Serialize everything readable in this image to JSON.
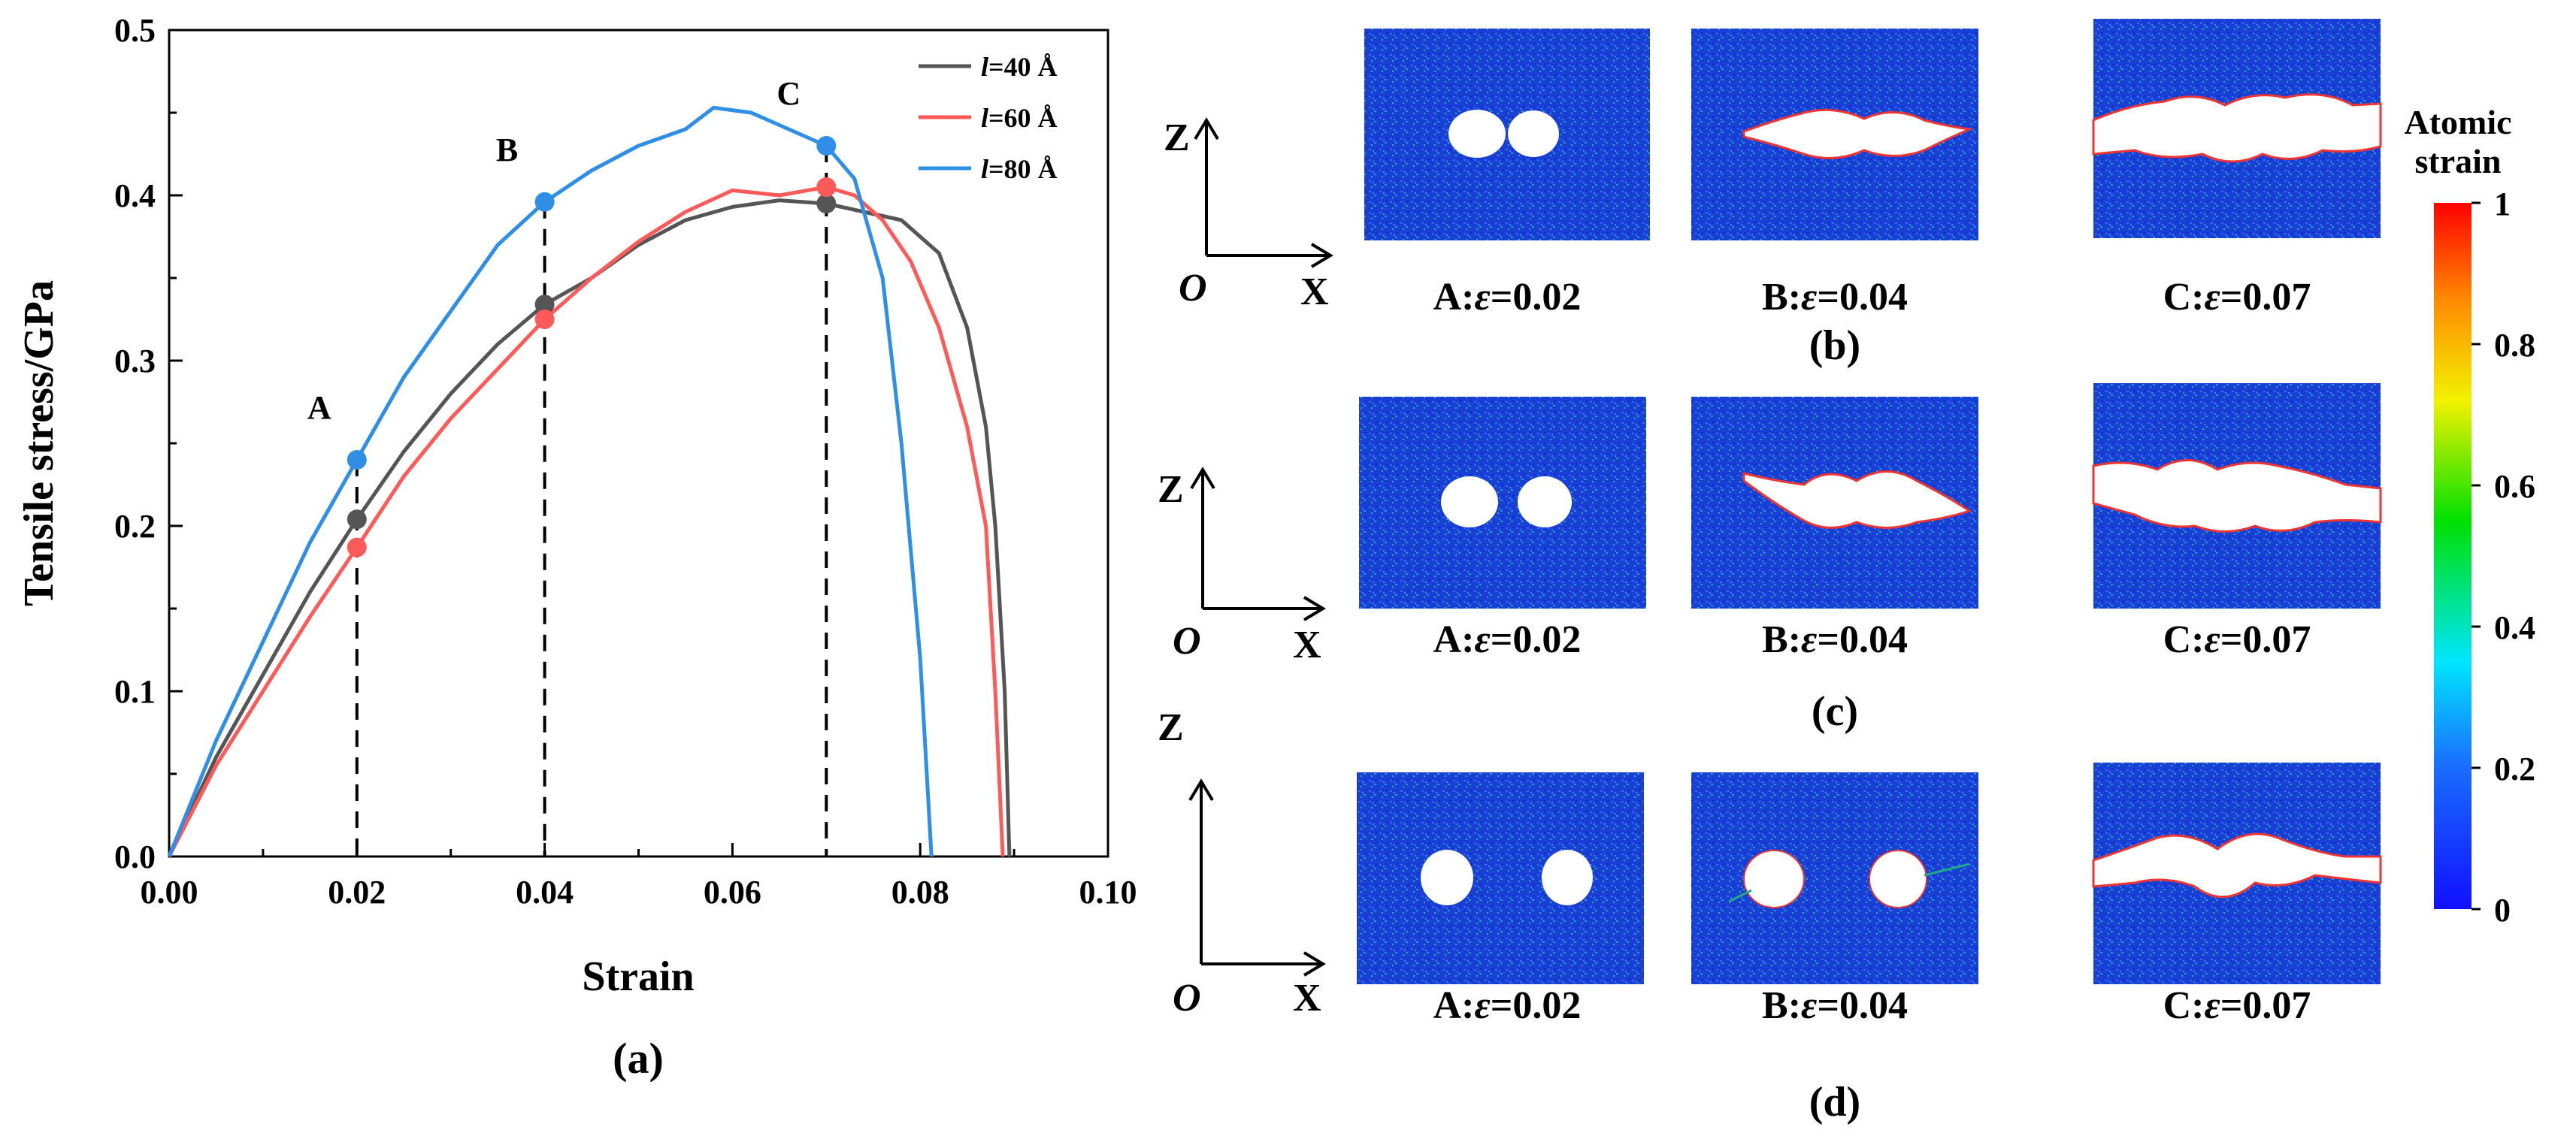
{
  "chart_data": {
    "type": "line",
    "xlabel": "Strain",
    "ylabel": "Tensile stress/GPa",
    "xlim": [
      0.0,
      0.1
    ],
    "ylim": [
      0.0,
      0.5
    ],
    "xticks": [
      "0.00",
      "0.02",
      "0.04",
      "0.06",
      "0.08",
      "0.10"
    ],
    "yticks": [
      "0.0",
      "0.1",
      "0.2",
      "0.3",
      "0.4",
      "0.5"
    ],
    "legend_position": "top-right",
    "series": [
      {
        "name_prefix": "l",
        "name_suffix": "=40 Å",
        "color": "#555555",
        "points": [
          [
            0,
            0
          ],
          [
            0.005,
            0.06
          ],
          [
            0.01,
            0.11
          ],
          [
            0.015,
            0.16
          ],
          [
            0.02,
            0.204
          ],
          [
            0.025,
            0.245
          ],
          [
            0.03,
            0.28
          ],
          [
            0.035,
            0.31
          ],
          [
            0.04,
            0.334
          ],
          [
            0.045,
            0.35
          ],
          [
            0.05,
            0.37
          ],
          [
            0.055,
            0.385
          ],
          [
            0.06,
            0.393
          ],
          [
            0.065,
            0.397
          ],
          [
            0.07,
            0.395
          ],
          [
            0.074,
            0.39
          ],
          [
            0.078,
            0.385
          ],
          [
            0.082,
            0.365
          ],
          [
            0.085,
            0.32
          ],
          [
            0.087,
            0.26
          ],
          [
            0.088,
            0.2
          ],
          [
            0.089,
            0.1
          ],
          [
            0.0895,
            0
          ]
        ]
      },
      {
        "name_prefix": "l",
        "name_suffix": "=60 Å",
        "color": "#ff5a5a",
        "points": [
          [
            0,
            0
          ],
          [
            0.005,
            0.055
          ],
          [
            0.01,
            0.1
          ],
          [
            0.015,
            0.145
          ],
          [
            0.02,
            0.187
          ],
          [
            0.025,
            0.23
          ],
          [
            0.03,
            0.265
          ],
          [
            0.035,
            0.295
          ],
          [
            0.04,
            0.325
          ],
          [
            0.045,
            0.35
          ],
          [
            0.05,
            0.372
          ],
          [
            0.055,
            0.39
          ],
          [
            0.06,
            0.403
          ],
          [
            0.065,
            0.4
          ],
          [
            0.07,
            0.405
          ],
          [
            0.073,
            0.4
          ],
          [
            0.076,
            0.385
          ],
          [
            0.079,
            0.36
          ],
          [
            0.082,
            0.32
          ],
          [
            0.085,
            0.26
          ],
          [
            0.087,
            0.2
          ],
          [
            0.088,
            0.1
          ],
          [
            0.0888,
            0
          ]
        ]
      },
      {
        "name_prefix": "l",
        "name_suffix": "=80 Å",
        "color": "#2f8fe6",
        "points": [
          [
            0,
            0
          ],
          [
            0.005,
            0.07
          ],
          [
            0.01,
            0.13
          ],
          [
            0.015,
            0.19
          ],
          [
            0.02,
            0.24
          ],
          [
            0.025,
            0.29
          ],
          [
            0.03,
            0.33
          ],
          [
            0.035,
            0.37
          ],
          [
            0.04,
            0.396
          ],
          [
            0.045,
            0.415
          ],
          [
            0.05,
            0.43
          ],
          [
            0.055,
            0.44
          ],
          [
            0.058,
            0.453
          ],
          [
            0.062,
            0.45
          ],
          [
            0.066,
            0.44
          ],
          [
            0.07,
            0.43
          ],
          [
            0.073,
            0.41
          ],
          [
            0.076,
            0.35
          ],
          [
            0.078,
            0.25
          ],
          [
            0.08,
            0.12
          ],
          [
            0.0812,
            0
          ]
        ]
      }
    ],
    "markers": [
      {
        "label": "A",
        "x": 0.02,
        "values": {
          "blue": 0.24,
          "gray": 0.204,
          "red": 0.187
        }
      },
      {
        "label": "B",
        "x": 0.04,
        "values": {
          "blue": 0.396,
          "gray": 0.334,
          "red": 0.325
        }
      },
      {
        "label": "C",
        "x": 0.07,
        "values": {
          "blue": 0.43,
          "gray": 0.395,
          "red": 0.405
        }
      }
    ]
  },
  "panel_a": {
    "caption": "(a)"
  },
  "axes_labels": {
    "z": "Z",
    "x": "X",
    "o": "O"
  },
  "snapshots": {
    "rows": [
      {
        "caption": "(b)",
        "items": [
          {
            "prefix": "A:",
            "eps": "ε",
            "value": "=0.02"
          },
          {
            "prefix": "B:",
            "eps": "ε",
            "value": "=0.04"
          },
          {
            "prefix": "C:",
            "eps": "ε",
            "value": "=0.07"
          }
        ]
      },
      {
        "caption": "(c)",
        "items": [
          {
            "prefix": "A:",
            "eps": "ε",
            "value": "=0.02"
          },
          {
            "prefix": "B:",
            "eps": "ε",
            "value": "=0.04"
          },
          {
            "prefix": "C:",
            "eps": "ε",
            "value": "=0.07"
          }
        ]
      },
      {
        "caption": "(d)",
        "items": [
          {
            "prefix": "A:",
            "eps": "ε",
            "value": "=0.02"
          },
          {
            "prefix": "B:",
            "eps": "ε",
            "value": "=0.04"
          },
          {
            "prefix": "C:",
            "eps": "ε",
            "value": "=0.07"
          }
        ]
      }
    ]
  },
  "colorbar": {
    "title_line1": "Atomic",
    "title_line2": "strain",
    "ticks": [
      "1",
      "0.8",
      "0.6",
      "0.4",
      "0.2",
      "0"
    ]
  }
}
